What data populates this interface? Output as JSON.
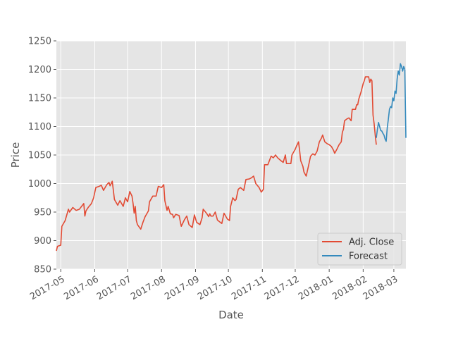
{
  "chart_data": {
    "type": "line",
    "title": "",
    "xlabel": "Date",
    "ylabel": "Price",
    "ylim": [
      850,
      1250
    ],
    "xlim": [
      "2017-04-27",
      "2018-03-12"
    ],
    "yticks": [
      850,
      900,
      950,
      1000,
      1050,
      1100,
      1150,
      1200,
      1250
    ],
    "xticks": [
      {
        "date": "2017-05-01",
        "label": "2017-05"
      },
      {
        "date": "2017-06-01",
        "label": "2017-06"
      },
      {
        "date": "2017-07-01",
        "label": "2017-07"
      },
      {
        "date": "2017-08-01",
        "label": "2017-08"
      },
      {
        "date": "2017-09-01",
        "label": "2017-09"
      },
      {
        "date": "2017-10-01",
        "label": "2017-10"
      },
      {
        "date": "2017-11-01",
        "label": "2017-11"
      },
      {
        "date": "2017-12-01",
        "label": "2017-12"
      },
      {
        "date": "2018-01-01",
        "label": "2018-01"
      },
      {
        "date": "2018-02-01",
        "label": "2018-02"
      },
      {
        "date": "2018-03-01",
        "label": "2018-03"
      }
    ],
    "grid": true,
    "legend_position": "lower-right",
    "style": {
      "background": "#e5e5e5",
      "grid": "#ffffff",
      "text": "#555555"
    },
    "series": [
      {
        "name": "Adj. Close",
        "color": "#e24a33",
        "points": [
          [
            "2017-04-27",
            882
          ],
          [
            "2017-04-28",
            890
          ],
          [
            "2017-05-01",
            892
          ],
          [
            "2017-05-02",
            925
          ],
          [
            "2017-05-05",
            935
          ],
          [
            "2017-05-08",
            955
          ],
          [
            "2017-05-09",
            950
          ],
          [
            "2017-05-12",
            958
          ],
          [
            "2017-05-15",
            953
          ],
          [
            "2017-05-18",
            955
          ],
          [
            "2017-05-22",
            965
          ],
          [
            "2017-05-23",
            943
          ],
          [
            "2017-05-24",
            952
          ],
          [
            "2017-05-26",
            958
          ],
          [
            "2017-05-29",
            965
          ],
          [
            "2017-05-31",
            975
          ],
          [
            "2017-06-02",
            993
          ],
          [
            "2017-06-05",
            995
          ],
          [
            "2017-06-07",
            997
          ],
          [
            "2017-06-09",
            988
          ],
          [
            "2017-06-12",
            998
          ],
          [
            "2017-06-14",
            1002
          ],
          [
            "2017-06-15",
            996
          ],
          [
            "2017-06-17",
            1004
          ],
          [
            "2017-06-19",
            972
          ],
          [
            "2017-06-22",
            962
          ],
          [
            "2017-06-24",
            970
          ],
          [
            "2017-06-27",
            960
          ],
          [
            "2017-06-29",
            975
          ],
          [
            "2017-07-01",
            968
          ],
          [
            "2017-07-03",
            986
          ],
          [
            "2017-07-05",
            978
          ],
          [
            "2017-07-06",
            965
          ],
          [
            "2017-07-07",
            948
          ],
          [
            "2017-07-08",
            960
          ],
          [
            "2017-07-09",
            935
          ],
          [
            "2017-07-10",
            928
          ],
          [
            "2017-07-13",
            920
          ],
          [
            "2017-07-15",
            932
          ],
          [
            "2017-07-17",
            942
          ],
          [
            "2017-07-20",
            952
          ],
          [
            "2017-07-21",
            968
          ],
          [
            "2017-07-24",
            978
          ],
          [
            "2017-07-27",
            978
          ],
          [
            "2017-07-29",
            995
          ],
          [
            "2017-08-01",
            993
          ],
          [
            "2017-08-03",
            998
          ],
          [
            "2017-08-04",
            970
          ],
          [
            "2017-08-06",
            953
          ],
          [
            "2017-08-07",
            960
          ],
          [
            "2017-08-09",
            947
          ],
          [
            "2017-08-11",
            946
          ],
          [
            "2017-08-12",
            940
          ],
          [
            "2017-08-14",
            946
          ],
          [
            "2017-08-17",
            944
          ],
          [
            "2017-08-19",
            925
          ],
          [
            "2017-08-22",
            937
          ],
          [
            "2017-08-24",
            943
          ],
          [
            "2017-08-26",
            928
          ],
          [
            "2017-08-29",
            923
          ],
          [
            "2017-08-31",
            945
          ],
          [
            "2017-09-02",
            932
          ],
          [
            "2017-09-05",
            928
          ],
          [
            "2017-09-07",
            940
          ],
          [
            "2017-09-08",
            955
          ],
          [
            "2017-09-11",
            948
          ],
          [
            "2017-09-13",
            942
          ],
          [
            "2017-09-14",
            947
          ],
          [
            "2017-09-15",
            943
          ],
          [
            "2017-09-17",
            943
          ],
          [
            "2017-09-19",
            950
          ],
          [
            "2017-09-21",
            936
          ],
          [
            "2017-09-25",
            930
          ],
          [
            "2017-09-27",
            948
          ],
          [
            "2017-09-30",
            938
          ],
          [
            "2017-10-02",
            935
          ],
          [
            "2017-10-03",
            960
          ],
          [
            "2017-10-05",
            975
          ],
          [
            "2017-10-07",
            970
          ],
          [
            "2017-10-08",
            972
          ],
          [
            "2017-10-10",
            990
          ],
          [
            "2017-10-12",
            993
          ],
          [
            "2017-10-15",
            988
          ],
          [
            "2017-10-17",
            1007
          ],
          [
            "2017-10-20",
            1008
          ],
          [
            "2017-10-22",
            1010
          ],
          [
            "2017-10-24",
            1013
          ],
          [
            "2017-10-26",
            1000
          ],
          [
            "2017-10-29",
            993
          ],
          [
            "2017-10-31",
            985
          ],
          [
            "2017-11-02",
            990
          ],
          [
            "2017-11-03",
            1033
          ],
          [
            "2017-11-06",
            1033
          ],
          [
            "2017-11-08",
            1043
          ],
          [
            "2017-11-09",
            1048
          ],
          [
            "2017-11-11",
            1045
          ],
          [
            "2017-11-13",
            1050
          ],
          [
            "2017-11-15",
            1045
          ],
          [
            "2017-11-18",
            1040
          ],
          [
            "2017-11-20",
            1037
          ],
          [
            "2017-11-22",
            1050
          ],
          [
            "2017-11-23",
            1035
          ],
          [
            "2017-11-27",
            1035
          ],
          [
            "2017-11-28",
            1050
          ],
          [
            "2017-12-01",
            1060
          ],
          [
            "2017-12-02",
            1065
          ],
          [
            "2017-12-04",
            1073
          ],
          [
            "2017-12-05",
            1058
          ],
          [
            "2017-12-06",
            1040
          ],
          [
            "2017-12-08",
            1030
          ],
          [
            "2017-12-09",
            1020
          ],
          [
            "2017-12-11",
            1013
          ],
          [
            "2017-12-13",
            1030
          ],
          [
            "2017-12-15",
            1048
          ],
          [
            "2017-12-17",
            1052
          ],
          [
            "2017-12-19",
            1050
          ],
          [
            "2017-12-21",
            1057
          ],
          [
            "2017-12-23",
            1073
          ],
          [
            "2017-12-25",
            1080
          ],
          [
            "2017-12-26",
            1085
          ],
          [
            "2017-12-28",
            1073
          ],
          [
            "2017-12-30",
            1070
          ],
          [
            "2018-01-01",
            1068
          ],
          [
            "2018-01-03",
            1065
          ],
          [
            "2018-01-05",
            1058
          ],
          [
            "2018-01-06",
            1053
          ],
          [
            "2018-01-08",
            1060
          ],
          [
            "2018-01-10",
            1068
          ],
          [
            "2018-01-12",
            1073
          ],
          [
            "2018-01-13",
            1090
          ],
          [
            "2018-01-14",
            1095
          ],
          [
            "2018-01-15",
            1110
          ],
          [
            "2018-01-17",
            1113
          ],
          [
            "2018-01-19",
            1115
          ],
          [
            "2018-01-21",
            1110
          ],
          [
            "2018-01-22",
            1130
          ],
          [
            "2018-01-25",
            1130
          ],
          [
            "2018-01-26",
            1138
          ],
          [
            "2018-01-27",
            1138
          ],
          [
            "2018-01-28",
            1148
          ],
          [
            "2018-01-30",
            1160
          ],
          [
            "2018-02-01",
            1175
          ],
          [
            "2018-02-02",
            1180
          ],
          [
            "2018-02-03",
            1187
          ],
          [
            "2018-02-06",
            1187
          ],
          [
            "2018-02-07",
            1177
          ],
          [
            "2018-02-08",
            1183
          ],
          [
            "2018-02-09",
            1180
          ],
          [
            "2018-02-10",
            1120
          ],
          [
            "2018-02-11",
            1105
          ],
          [
            "2018-02-12",
            1085
          ],
          [
            "2018-02-13",
            1068
          ]
        ]
      },
      {
        "name": "Forecast",
        "color": "#348abd",
        "points": [
          [
            "2018-02-13",
            1080
          ],
          [
            "2018-02-14",
            1095
          ],
          [
            "2018-02-15",
            1107
          ],
          [
            "2018-02-16",
            1100
          ],
          [
            "2018-02-17",
            1093
          ],
          [
            "2018-02-18",
            1092
          ],
          [
            "2018-02-19",
            1088
          ],
          [
            "2018-02-20",
            1085
          ],
          [
            "2018-02-21",
            1078
          ],
          [
            "2018-02-22",
            1074
          ],
          [
            "2018-02-23",
            1098
          ],
          [
            "2018-02-24",
            1113
          ],
          [
            "2018-02-25",
            1130
          ],
          [
            "2018-02-26",
            1135
          ],
          [
            "2018-02-27",
            1133
          ],
          [
            "2018-02-28",
            1150
          ],
          [
            "2018-03-01",
            1145
          ],
          [
            "2018-03-02",
            1162
          ],
          [
            "2018-03-03",
            1158
          ],
          [
            "2018-03-04",
            1183
          ],
          [
            "2018-03-05",
            1197
          ],
          [
            "2018-03-06",
            1190
          ],
          [
            "2018-03-07",
            1210
          ],
          [
            "2018-03-08",
            1205
          ],
          [
            "2018-03-09",
            1197
          ],
          [
            "2018-03-10",
            1205
          ],
          [
            "2018-03-11",
            1200
          ],
          [
            "2018-03-12",
            1080
          ]
        ]
      }
    ]
  }
}
